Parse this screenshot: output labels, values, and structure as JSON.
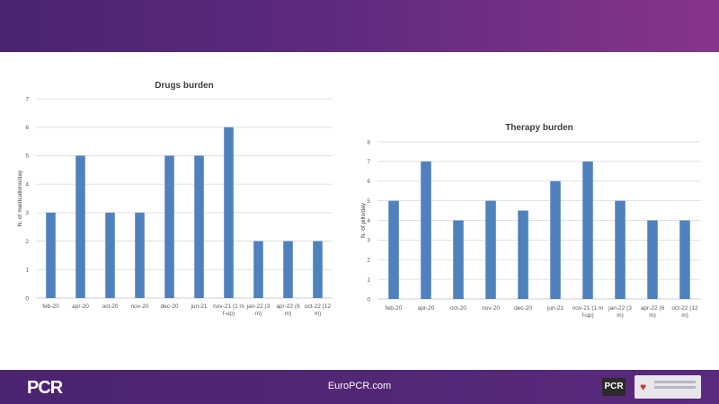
{
  "footer": {
    "site": "EuroPCR.com"
  },
  "logos": {
    "left_logo": "PCR",
    "badge": "PCR"
  },
  "chart_data": [
    {
      "type": "bar",
      "title": "Drugs burden",
      "ylabel": "N. of meidcations/day",
      "xlabel": "",
      "categories": [
        "feb-20",
        "apr-20",
        "oct-20",
        "nov-20",
        "dec-20",
        "jun-21",
        "nov-21 (1 m f-up)",
        "jan-22 (3 m)",
        "apr-22 (6 m)",
        "oct-22 (12 m)"
      ],
      "values": [
        3,
        5,
        3,
        3,
        5,
        5,
        6,
        2,
        2,
        2
      ],
      "ylim": [
        0,
        7
      ],
      "yticks": [
        0,
        1,
        2,
        3,
        4,
        5,
        6,
        7
      ],
      "grid": true,
      "color": "#4f81bd"
    },
    {
      "type": "bar",
      "title": "Therapy burden",
      "ylabel": "N. of pills/day",
      "xlabel": "",
      "categories": [
        "feb-20",
        "apr-20",
        "oct-20",
        "nov-20",
        "dec-20",
        "jun-21",
        "nov-21 (1 m f-up)",
        "jan-22 (3 m)",
        "apr-22 (6 m)",
        "oct-22 (12 m)"
      ],
      "values": [
        5,
        7,
        4,
        5,
        4.5,
        6,
        7,
        5,
        4,
        4
      ],
      "ylim": [
        0,
        8
      ],
      "yticks": [
        0,
        1,
        2,
        3,
        4,
        5,
        6,
        7,
        8
      ],
      "grid": true,
      "color": "#4f81bd"
    }
  ]
}
